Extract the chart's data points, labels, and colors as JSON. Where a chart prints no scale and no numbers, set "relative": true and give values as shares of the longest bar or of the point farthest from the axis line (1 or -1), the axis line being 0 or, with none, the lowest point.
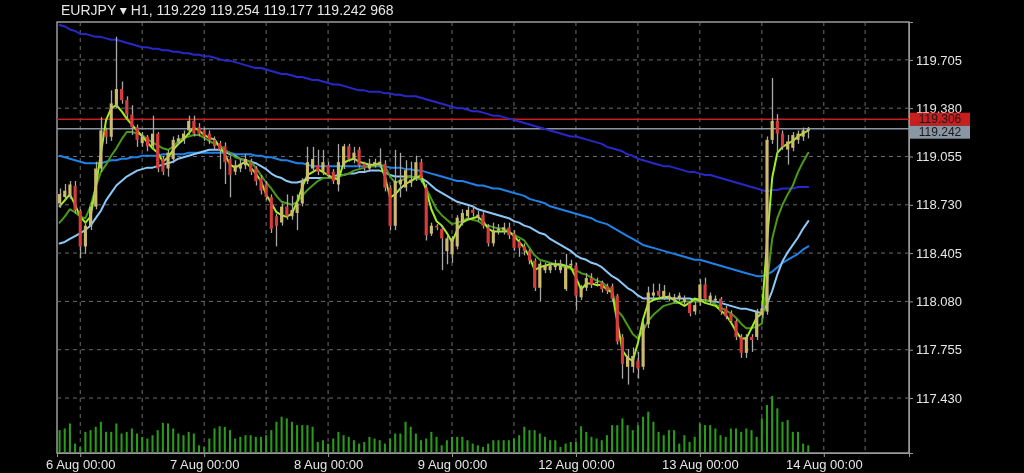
{
  "chart_data": [
    {
      "type": "candlestick",
      "title": "EURJPY ▾ H1, 119.229 119.254 119.177 119.242 968",
      "categories": [
        null,
        null,
        null,
        null,
        "6 Aug 00:00",
        null,
        null,
        null,
        null,
        null,
        null,
        null,
        null,
        null,
        null,
        null,
        null,
        null,
        null,
        null,
        null,
        null,
        null,
        null,
        null,
        null,
        null,
        null,
        "7 Aug 00:00",
        null,
        null,
        null,
        null,
        null,
        null,
        null,
        null,
        null,
        null,
        null,
        null,
        null,
        null,
        null,
        null,
        null,
        null,
        null,
        null,
        null,
        null,
        null,
        "8 Aug 00:00",
        null,
        null,
        null,
        null,
        null,
        null,
        null,
        null,
        null,
        null,
        null,
        null,
        null,
        null,
        null,
        null,
        null,
        null,
        null,
        null,
        null,
        null,
        null,
        "9 Aug 00:00",
        null,
        null,
        null,
        null,
        null,
        null,
        null,
        null,
        null,
        null,
        null,
        null,
        null,
        null,
        null,
        null,
        null,
        null,
        null,
        null,
        null,
        null,
        null,
        "12 Aug 00:00",
        null,
        null,
        null,
        null,
        null,
        null,
        null,
        null,
        null,
        null,
        null,
        null,
        null,
        null,
        null,
        null,
        null,
        null,
        null,
        null,
        null,
        null,
        null,
        "13 Aug 00:00",
        null,
        null,
        null,
        null,
        null,
        null,
        null,
        null,
        null,
        null,
        null,
        null,
        null,
        null,
        null,
        null,
        null,
        null,
        null,
        null,
        null,
        null,
        null,
        "14 Aug 00:00",
        null,
        null,
        null,
        null,
        null,
        null,
        null,
        null,
        null,
        null,
        null,
        null,
        null,
        null,
        null,
        null
      ],
      "ohlc": [
        [
          118.739,
          118.84,
          118.71,
          118.803
        ],
        [
          118.782,
          118.87,
          118.76,
          118.825
        ],
        [
          118.792,
          118.89,
          118.77,
          118.867
        ],
        [
          118.857,
          118.89,
          118.67,
          118.696
        ],
        [
          118.69,
          118.7,
          118.37,
          118.45
        ],
        [
          118.45,
          118.62,
          118.4,
          118.589
        ],
        [
          118.589,
          118.75,
          118.56,
          118.718
        ],
        [
          118.718,
          119.02,
          118.7,
          118.974
        ],
        [
          118.974,
          119.32,
          118.95,
          119.231
        ],
        [
          119.231,
          119.25,
          119.14,
          119.188
        ],
        [
          119.188,
          119.5,
          119.16,
          119.412
        ],
        [
          119.402,
          119.861,
          119.38,
          119.509
        ],
        [
          119.509,
          119.56,
          119.41,
          119.434
        ],
        [
          119.434,
          119.46,
          119.3,
          119.338
        ],
        [
          119.338,
          119.4,
          119.2,
          119.252
        ],
        [
          119.252,
          119.27,
          119.12,
          119.167
        ],
        [
          119.145,
          119.22,
          119.12,
          119.188
        ],
        [
          119.188,
          119.2,
          119.09,
          119.124
        ],
        [
          119.124,
          119.33,
          119.1,
          119.209
        ],
        [
          119.209,
          119.22,
          118.95,
          118.974
        ],
        [
          119.038,
          119.06,
          118.93,
          118.953
        ],
        [
          118.974,
          119.1,
          118.92,
          119.081
        ],
        [
          119.038,
          119.19,
          119.01,
          119.167
        ],
        [
          119.156,
          119.2,
          119.13,
          119.177
        ],
        [
          119.167,
          119.23,
          119.14,
          119.209
        ],
        [
          119.231,
          119.33,
          119.2,
          119.295
        ],
        [
          119.295,
          119.33,
          119.19,
          119.209
        ],
        [
          119.252,
          119.28,
          119.19,
          119.209
        ],
        [
          119.231,
          119.25,
          119.16,
          119.188
        ],
        [
          119.209,
          119.23,
          119.14,
          119.167
        ],
        [
          119.167,
          119.19,
          119.1,
          119.124
        ],
        [
          119.145,
          119.16,
          118.97,
          119.102
        ],
        [
          119.124,
          119.15,
          118.87,
          119.017
        ],
        [
          119.038,
          119.06,
          118.78,
          118.931
        ],
        [
          118.953,
          119.03,
          118.93,
          118.996
        ],
        [
          118.974,
          119.04,
          118.95,
          119.006
        ],
        [
          118.996,
          119.07,
          118.97,
          119.038
        ],
        [
          119.017,
          119.04,
          118.93,
          118.953
        ],
        [
          118.974,
          118.99,
          118.86,
          118.889
        ],
        [
          118.91,
          118.93,
          118.8,
          118.825
        ],
        [
          118.867,
          118.89,
          118.76,
          118.782
        ],
        [
          118.782,
          118.8,
          118.54,
          118.568
        ],
        [
          118.653,
          118.67,
          118.45,
          118.589
        ],
        [
          118.611,
          118.74,
          118.59,
          118.718
        ],
        [
          118.718,
          118.8,
          118.63,
          118.653
        ],
        [
          118.653,
          118.79,
          118.63,
          118.696
        ],
        [
          118.675,
          118.8,
          118.56,
          118.739
        ],
        [
          118.739,
          118.91,
          118.72,
          118.889
        ],
        [
          118.889,
          119.12,
          118.87,
          119.017
        ],
        [
          118.974,
          119.12,
          118.95,
          119.038
        ],
        [
          118.996,
          119.1,
          118.93,
          118.953
        ],
        [
          118.953,
          119.1,
          118.93,
          119.017
        ],
        [
          118.996,
          119.02,
          118.91,
          118.931
        ],
        [
          118.953,
          118.97,
          118.87,
          118.889
        ],
        [
          118.867,
          119.14,
          118.82,
          119.017
        ],
        [
          118.996,
          119.14,
          118.97,
          119.124
        ],
        [
          119.124,
          119.14,
          119.02,
          119.038
        ],
        [
          119.038,
          119.12,
          119.01,
          119.081
        ],
        [
          119.102,
          119.12,
          118.98,
          118.996
        ],
        [
          119.006,
          119.02,
          118.95,
          118.974
        ],
        [
          118.974,
          119.04,
          118.95,
          119.006
        ],
        [
          118.996,
          119.04,
          118.98,
          119.017
        ],
        [
          118.996,
          119.11,
          118.98,
          119.02
        ],
        [
          119.006,
          119.03,
          118.82,
          118.846
        ],
        [
          118.846,
          118.86,
          118.56,
          118.589
        ],
        [
          118.589,
          119.1,
          118.56,
          118.889
        ],
        [
          118.867,
          119.08,
          118.78,
          118.899
        ],
        [
          118.846,
          119.03,
          118.82,
          118.963
        ],
        [
          118.878,
          119.02,
          118.85,
          118.899
        ],
        [
          118.91,
          119.06,
          118.89,
          119.017
        ],
        [
          119.017,
          119.04,
          118.88,
          118.91
        ],
        [
          118.846,
          118.87,
          118.49,
          118.525
        ],
        [
          118.536,
          118.61,
          118.52,
          118.589
        ],
        [
          118.589,
          118.6,
          118.56,
          118.578
        ],
        [
          118.568,
          118.58,
          118.29,
          118.504
        ],
        [
          118.418,
          118.52,
          118.33,
          118.504
        ],
        [
          118.397,
          118.52,
          118.34,
          118.504
        ],
        [
          118.45,
          118.66,
          118.43,
          118.643
        ],
        [
          118.611,
          118.7,
          118.59,
          118.675
        ],
        [
          118.653,
          118.72,
          118.63,
          118.696
        ],
        [
          118.696,
          118.72,
          118.65,
          118.675
        ],
        [
          118.643,
          118.69,
          118.62,
          118.664
        ],
        [
          118.664,
          118.68,
          118.57,
          118.589
        ],
        [
          118.578,
          118.6,
          118.45,
          118.471
        ],
        [
          118.471,
          118.61,
          118.45,
          118.557
        ],
        [
          118.557,
          118.6,
          118.53,
          118.568
        ],
        [
          118.557,
          118.61,
          118.53,
          118.578
        ],
        [
          118.578,
          118.61,
          118.5,
          118.525
        ],
        [
          118.536,
          118.56,
          118.42,
          118.44
        ],
        [
          118.482,
          118.5,
          118.38,
          118.44
        ],
        [
          118.45,
          118.47,
          118.39,
          118.418
        ],
        [
          118.418,
          118.43,
          118.33,
          118.354
        ],
        [
          118.354,
          118.37,
          118.15,
          118.172
        ],
        [
          118.172,
          118.35,
          118.08,
          118.333
        ],
        [
          118.29,
          118.34,
          118.27,
          118.322
        ],
        [
          118.29,
          118.34,
          118.27,
          118.322
        ],
        [
          118.311,
          118.36,
          118.29,
          118.333
        ],
        [
          118.29,
          118.36,
          118.27,
          118.322
        ],
        [
          118.162,
          118.4,
          118.15,
          118.311
        ],
        [
          118.322,
          118.36,
          118.3,
          118.333
        ],
        [
          118.322,
          118.34,
          118.02,
          118.119
        ],
        [
          118.108,
          118.19,
          118.09,
          118.172
        ],
        [
          118.172,
          118.27,
          118.15,
          118.237
        ],
        [
          118.237,
          118.27,
          118.17,
          118.194
        ],
        [
          118.205,
          118.24,
          118.18,
          118.21
        ],
        [
          118.205,
          118.22,
          118.14,
          118.162
        ],
        [
          118.183,
          118.2,
          118.13,
          118.151
        ],
        [
          118.183,
          118.2,
          118.08,
          118.098
        ],
        [
          118.119,
          118.13,
          117.79,
          117.809
        ],
        [
          117.841,
          117.86,
          117.56,
          117.66
        ],
        [
          117.64,
          117.76,
          117.52,
          117.713
        ],
        [
          117.64,
          117.77,
          117.6,
          117.713
        ],
        [
          117.681,
          117.74,
          117.56,
          117.629
        ],
        [
          117.64,
          117.95,
          117.62,
          117.927
        ],
        [
          117.927,
          118.18,
          117.9,
          118.14
        ],
        [
          118.119,
          118.2,
          118.1,
          118.14
        ],
        [
          118.151,
          118.2,
          118.1,
          118.119
        ],
        [
          118.108,
          118.19,
          118.09,
          118.151
        ],
        [
          118.098,
          118.14,
          118.08,
          118.119
        ],
        [
          118.087,
          118.13,
          118.07,
          118.108
        ],
        [
          118.098,
          118.14,
          118.08,
          118.119
        ],
        [
          118.076,
          118.12,
          118.06,
          118.098
        ],
        [
          118.066,
          118.08,
          117.98,
          118.001
        ],
        [
          118.012,
          118.08,
          117.99,
          118.055
        ],
        [
          118.076,
          118.23,
          118.05,
          118.194
        ],
        [
          118.194,
          118.24,
          118.08,
          118.098
        ],
        [
          118.076,
          118.14,
          118.06,
          118.119
        ],
        [
          118.087,
          118.12,
          118.07,
          118.098
        ],
        [
          118.098,
          118.11,
          117.99,
          118.012
        ],
        [
          118.033,
          118.05,
          117.96,
          117.98
        ],
        [
          118.001,
          118.02,
          117.93,
          117.948
        ],
        [
          117.948,
          117.96,
          117.82,
          117.841
        ],
        [
          117.841,
          117.86,
          117.7,
          117.734
        ],
        [
          117.734,
          117.86,
          117.7,
          117.841
        ],
        [
          117.841,
          117.86,
          117.74,
          117.82
        ],
        [
          117.841,
          118.03,
          117.82,
          118.012
        ],
        [
          117.991,
          118.06,
          117.97,
          118.033
        ],
        [
          118.012,
          119.19,
          117.99,
          119.167
        ],
        [
          119.167,
          119.583,
          119.14,
          119.295
        ],
        [
          119.295,
          119.34,
          119.06,
          119.209
        ],
        [
          119.209,
          119.23,
          119.1,
          119.124
        ],
        [
          119.102,
          119.2,
          119.0,
          119.156
        ],
        [
          119.113,
          119.22,
          119.09,
          119.199
        ],
        [
          119.167,
          119.23,
          119.14,
          119.209
        ],
        [
          119.188,
          119.25,
          119.16,
          119.231
        ],
        [
          119.229,
          119.254,
          119.177,
          119.242
        ],
        null,
        null,
        null,
        null,
        null,
        null,
        null,
        null,
        null,
        null,
        null,
        null,
        null,
        null,
        null,
        null,
        null,
        null,
        null
      ],
      "series": [
        {
          "type": "line",
          "color": "#2828c8",
          "values": [
            119.94,
            119.93,
            119.91,
            119.9,
            119.88,
            119.88,
            119.87,
            119.86,
            119.86,
            119.85,
            119.84,
            119.84,
            119.83,
            119.82,
            119.81,
            119.8,
            119.79,
            119.79,
            119.78,
            119.78,
            119.77,
            119.77,
            119.76,
            119.76,
            119.75,
            119.75,
            119.74,
            119.74,
            119.73,
            119.73,
            119.72,
            119.71,
            119.7,
            119.7,
            119.69,
            119.68,
            119.67,
            119.66,
            119.65,
            119.65,
            119.64,
            119.63,
            119.62,
            119.61,
            119.61,
            119.6,
            119.59,
            119.59,
            119.58,
            119.57,
            119.57,
            119.56,
            119.55,
            119.54,
            119.54,
            119.53,
            119.52,
            119.51,
            119.5,
            119.5,
            119.49,
            119.49,
            119.49,
            119.48,
            119.48,
            119.47,
            119.47,
            119.46,
            119.46,
            119.46,
            119.45,
            119.44,
            119.43,
            119.42,
            119.41,
            119.4,
            119.39,
            119.38,
            119.38,
            119.37,
            119.36,
            119.36,
            119.35,
            119.34,
            119.33,
            119.33,
            119.32,
            119.31,
            119.3,
            119.29,
            119.28,
            119.27,
            119.26,
            119.25,
            119.24,
            119.23,
            119.22,
            119.21,
            119.2,
            119.19,
            119.19,
            119.18,
            119.17,
            119.16,
            119.15,
            119.14,
            119.12,
            119.11,
            119.1,
            119.09,
            119.07,
            119.06,
            119.04,
            119.03,
            119.02,
            119.01,
            119.0,
            118.99,
            118.99,
            118.98,
            118.97,
            118.96,
            118.95,
            118.95,
            118.94,
            118.93,
            118.93,
            118.92,
            118.91,
            118.9,
            118.89,
            118.88,
            118.87,
            118.86,
            118.85,
            118.84,
            118.83,
            118.82,
            118.83,
            118.83,
            118.84,
            118.84,
            118.84,
            118.85,
            118.85,
            118.85,
            null,
            null,
            null,
            null,
            null,
            null,
            null,
            null,
            null,
            null,
            null,
            null,
            null,
            null,
            null,
            null,
            null,
            null,
            null
          ]
        },
        {
          "type": "line",
          "color": "#1e82e6",
          "values": [
            119.06,
            119.05,
            119.04,
            119.03,
            119.02,
            119.01,
            119.01,
            119.01,
            119.01,
            119.02,
            119.03,
            119.03,
            119.04,
            119.04,
            119.05,
            119.05,
            119.06,
            119.06,
            119.06,
            119.06,
            119.07,
            119.07,
            119.07,
            119.07,
            119.07,
            119.08,
            119.08,
            119.08,
            119.08,
            119.08,
            119.08,
            119.08,
            119.08,
            119.08,
            119.07,
            119.07,
            119.07,
            119.07,
            119.06,
            119.06,
            119.05,
            119.05,
            119.04,
            119.03,
            119.03,
            119.02,
            119.01,
            119.01,
            119.0,
            118.99,
            118.99,
            118.99,
            118.99,
            118.99,
            118.99,
            118.99,
            118.99,
            118.99,
            118.99,
            118.99,
            118.99,
            118.99,
            118.99,
            118.99,
            118.98,
            118.98,
            118.98,
            118.97,
            118.97,
            118.96,
            118.96,
            118.95,
            118.94,
            118.93,
            118.92,
            118.91,
            118.9,
            118.89,
            118.89,
            118.88,
            118.87,
            118.86,
            118.86,
            118.85,
            118.84,
            118.84,
            118.83,
            118.82,
            118.81,
            118.8,
            118.79,
            118.77,
            118.76,
            118.75,
            118.74,
            118.72,
            118.71,
            118.7,
            118.69,
            118.68,
            118.67,
            118.66,
            118.65,
            118.64,
            118.62,
            118.61,
            118.6,
            118.58,
            118.56,
            118.54,
            118.52,
            118.5,
            118.48,
            118.46,
            118.45,
            118.44,
            118.43,
            118.42,
            118.41,
            118.4,
            118.39,
            118.38,
            118.37,
            118.36,
            118.36,
            118.35,
            118.34,
            118.33,
            118.32,
            118.31,
            118.3,
            118.29,
            118.28,
            118.27,
            118.26,
            118.25,
            118.25,
            118.26,
            118.28,
            118.31,
            118.34,
            118.36,
            118.38,
            118.4,
            118.43,
            118.45,
            null,
            null,
            null,
            null,
            null,
            null,
            null,
            null,
            null,
            null,
            null,
            null,
            null,
            null,
            null,
            null,
            null,
            null,
            null
          ]
        },
        {
          "type": "line",
          "color": "#8cc8f8",
          "values": [
            118.47,
            118.48,
            118.5,
            118.52,
            118.54,
            118.56,
            118.59,
            118.64,
            118.69,
            118.76,
            118.81,
            118.86,
            118.89,
            118.92,
            118.94,
            118.96,
            118.97,
            118.98,
            118.98,
            118.99,
            119.0,
            119.01,
            119.02,
            119.04,
            119.05,
            119.06,
            119.07,
            119.08,
            119.09,
            119.1,
            119.1,
            119.1,
            119.09,
            119.07,
            119.06,
            119.04,
            119.03,
            119.02,
            119.01,
            118.99,
            118.97,
            118.94,
            118.92,
            118.91,
            118.89,
            118.88,
            118.88,
            118.89,
            118.91,
            118.91,
            118.91,
            118.91,
            118.91,
            118.92,
            118.93,
            118.93,
            118.94,
            118.94,
            118.95,
            118.95,
            118.96,
            118.96,
            118.96,
            118.95,
            118.93,
            118.92,
            118.92,
            118.92,
            118.92,
            118.91,
            118.91,
            118.89,
            118.86,
            118.83,
            118.81,
            118.79,
            118.77,
            118.75,
            118.74,
            118.73,
            118.72,
            118.7,
            118.69,
            118.68,
            118.67,
            118.66,
            118.65,
            118.64,
            118.62,
            118.61,
            118.59,
            118.58,
            118.56,
            118.54,
            118.53,
            118.5,
            118.48,
            118.46,
            118.44,
            118.42,
            118.39,
            118.37,
            118.36,
            118.34,
            118.33,
            118.31,
            118.28,
            118.25,
            118.23,
            118.2,
            118.17,
            118.15,
            118.12,
            118.1,
            118.1,
            118.1,
            118.1,
            118.1,
            118.1,
            118.1,
            118.1,
            118.1,
            118.1,
            118.09,
            null,
            118.09,
            118.08,
            118.08,
            118.07,
            118.06,
            118.05,
            118.04,
            118.03,
            118.03,
            118.02,
            118.01,
            118.0,
            118.06,
            118.15,
            118.26,
            118.35,
            118.41,
            118.46,
            118.51,
            118.57,
            118.62,
            null,
            null,
            null,
            null,
            null,
            null,
            null,
            null,
            null,
            null,
            null,
            null,
            null,
            null,
            null,
            null,
            null,
            null,
            null
          ]
        },
        {
          "type": "line",
          "color": "#4a9a1a",
          "values": [
            118.61,
            118.65,
            118.7,
            118.68,
            118.65,
            118.64,
            118.72,
            118.85,
            118.95,
            119.0,
            119.06,
            119.11,
            119.17,
            119.22,
            119.22,
            119.21,
            119.2,
            119.17,
            119.15,
            119.13,
            119.11,
            119.1,
            119.12,
            119.16,
            119.18,
            119.19,
            119.2,
            119.2,
            119.18,
            119.16,
            119.14,
            119.13,
            119.1,
            119.08,
            119.05,
            119.04,
            119.03,
            119.02,
            118.98,
            118.93,
            118.88,
            118.84,
            118.79,
            118.75,
            118.74,
            118.73,
            118.75,
            118.79,
            118.83,
            118.86,
            118.89,
            118.91,
            118.91,
            118.91,
            118.92,
            118.93,
            118.94,
            118.96,
            118.97,
            118.98,
            118.99,
            118.99,
            119.0,
            118.99,
            118.92,
            118.88,
            118.89,
            118.91,
            118.92,
            118.91,
            118.9,
            118.84,
            118.77,
            118.7,
            118.66,
            118.63,
            118.6,
            118.61,
            118.62,
            118.64,
            118.63,
            118.62,
            118.6,
            118.59,
            118.58,
            118.57,
            118.57,
            118.55,
            118.53,
            118.51,
            118.49,
            118.44,
            118.39,
            118.36,
            118.35,
            118.34,
            118.33,
            118.32,
            118.31,
            118.3,
            118.29,
            118.27,
            118.26,
            118.24,
            118.22,
            118.21,
            118.18,
            118.15,
            118.02,
            117.98,
            117.92,
            117.86,
            117.83,
            117.88,
            117.95,
            117.99,
            118.02,
            118.05,
            118.06,
            118.07,
            118.07,
            118.08,
            118.08,
            118.08,
            118.08,
            118.09,
            118.08,
            118.06,
            118.04,
            118.02,
            118.0,
            117.97,
            117.93,
            117.9,
            117.9,
            117.91,
            117.93,
            118.2,
            118.5,
            118.64,
            118.73,
            118.8,
            118.86,
            118.95,
            119.02,
            119.08,
            null,
            null,
            null,
            null,
            null,
            null,
            null,
            null,
            null,
            null,
            null,
            null,
            null,
            null,
            null,
            null,
            null,
            null,
            null
          ]
        },
        {
          "type": "line",
          "color": "#a0f020",
          "values": [
            118.72,
            118.76,
            118.8,
            118.73,
            118.65,
            118.61,
            118.65,
            118.85,
            null,
            119.3,
            119.38,
            119.4,
            119.36,
            119.31,
            119.27,
            119.23,
            119.19,
            119.15,
            119.11,
            119.08,
            119.02,
            119.05,
            119.1,
            119.14,
            119.17,
            119.21,
            119.25,
            119.23,
            119.2,
            119.18,
            119.17,
            119.12,
            119.07,
            119.0,
            118.98,
            119.0,
            119.02,
            118.98,
            118.94,
            118.89,
            118.8,
            118.74,
            118.68,
            118.66,
            118.65,
            118.67,
            118.75,
            118.85,
            118.93,
            118.95,
            118.97,
            118.95,
            118.93,
            118.91,
            118.9,
            119.01,
            119.03,
            119.04,
            119.02,
            119.01,
            119.0,
            119.0,
            119.01,
            118.92,
            118.78,
            118.8,
            118.84,
            118.87,
            118.89,
            118.91,
            118.93,
            118.83,
            118.7,
            118.62,
            118.59,
            118.54,
            118.48,
            118.56,
            118.61,
            118.63,
            118.64,
            118.65,
            118.62,
            118.57,
            118.55,
            118.55,
            118.55,
            118.55,
            118.52,
            118.48,
            118.44,
            118.38,
            118.29,
            118.31,
            118.32,
            118.33,
            118.33,
            118.33,
            118.32,
            118.31,
            118.24,
            118.16,
            118.2,
            118.2,
            118.19,
            118.19,
            118.16,
            118.14,
            null,
            117.75,
            117.7,
            117.68,
            117.8,
            117.96,
            118.07,
            118.09,
            118.1,
            118.11,
            118.11,
            118.09,
            118.07,
            118.05,
            118.07,
            118.1,
            118.09,
            118.07,
            118.06,
            118.05,
            118.02,
            117.99,
            117.94,
            117.88,
            117.83,
            117.83,
            117.9,
            117.97,
            118.0,
            118.48,
            118.91,
            119.08,
            119.12,
            119.14,
            119.16,
            119.19,
            119.21,
            119.23,
            null,
            null,
            null,
            null,
            null,
            null,
            null,
            null,
            null,
            null,
            null,
            null,
            null,
            null,
            null,
            null,
            null,
            null,
            null
          ]
        }
      ],
      "ylim": [
        117.06,
        119.96
      ],
      "yticks": [
        {
          "value": 117.43,
          "label": "117.430"
        },
        117.755,
        {
          "value": 118.08,
          "label": "118.080"
        },
        118.405,
        {
          "value": 118.73,
          "label": "118.730"
        },
        119.055,
        {
          "value": 119.38,
          "label": "119.380"
        },
        119.705
      ],
      "ref_lines": [
        {
          "axis": "y",
          "value": 119.306,
          "label": "119.306",
          "color": "#c81e1e"
        },
        {
          "axis": "y",
          "value": 119.242,
          "label": "119.242",
          "color": "#8a96a4"
        }
      ],
      "grid": true
    },
    {
      "type": "bar",
      "relative": true,
      "color": "#2a9a1a",
      "categories": [
        null,
        null,
        null,
        null,
        null,
        null,
        null,
        null,
        null,
        null,
        null,
        null,
        null,
        null,
        null,
        null,
        null,
        null,
        null,
        null,
        null,
        null,
        null,
        null,
        null,
        null,
        null,
        null,
        null,
        null,
        null,
        null,
        null,
        null,
        null,
        null,
        null,
        null,
        null,
        null,
        null,
        null,
        null,
        null,
        null,
        null,
        null,
        null,
        null,
        null,
        null,
        null,
        null,
        null,
        null,
        null,
        null,
        null,
        null,
        null,
        null,
        null,
        null,
        null,
        null,
        null,
        null,
        null,
        null,
        null,
        null,
        null,
        null,
        null,
        null,
        null,
        null,
        null,
        null,
        null,
        null,
        null,
        null,
        null,
        null,
        null,
        null,
        null,
        null,
        null,
        null,
        null,
        null,
        null,
        null,
        null,
        null,
        null,
        null,
        null,
        null,
        null,
        null,
        null,
        null,
        null,
        null,
        null,
        null,
        null,
        null,
        null,
        null,
        null,
        null,
        null,
        null,
        null,
        null,
        null,
        null,
        null,
        null,
        null,
        null,
        null,
        null,
        null,
        null,
        null,
        null,
        null,
        null,
        null,
        null,
        null,
        null,
        null,
        null,
        null,
        null,
        null,
        null,
        null,
        null,
        null
      ],
      "values": [
        0.39,
        0.42,
        0.51,
        0.15,
        0.09,
        0.36,
        0.39,
        0.45,
        0.54,
        0.36,
        0.36,
        0.51,
        0.33,
        0.36,
        0.42,
        0.33,
        0.27,
        0.24,
        0.3,
        0.39,
        0.52,
        0.51,
        0.42,
        0.33,
        0.3,
        0.36,
        0.33,
        0.12,
        0.09,
        0.24,
        0.42,
        0.46,
        0.45,
        0.39,
        0.24,
        0.27,
        0.3,
        0.3,
        0.27,
        0.27,
        0.3,
        0.39,
        0.54,
        0.63,
        0.6,
        0.54,
        0.48,
        0.48,
        0.48,
        0.45,
        0.18,
        0.21,
        0.15,
        0.24,
        0.36,
        0.3,
        0.27,
        0.21,
        0.15,
        0.18,
        0.27,
        0.24,
        0.21,
        0.15,
        0.24,
        0.33,
        0.33,
        0.54,
        0.45,
        0.33,
        0.21,
        0.24,
        0.36,
        0.27,
        0.12,
        0.21,
        0.27,
        0.27,
        0.27,
        0.21,
        0.15,
        0.12,
        0.09,
        0.15,
        0.21,
        0.21,
        0.21,
        0.21,
        0.24,
        0.3,
        0.45,
        0.39,
        0.39,
        0.33,
        0.27,
        0.21,
        0.21,
        0.09,
        0.15,
        0.18,
        0.18,
        0.46,
        0.36,
        0.27,
        0.24,
        0.21,
        0.3,
        0.48,
        0.48,
        0.6,
        0.48,
        0.39,
        0.48,
        0.63,
        0.72,
        0.54,
        0.36,
        0.3,
        0.39,
        0.39,
        0.15,
        0.3,
        0.18,
        0.27,
        0.51,
        0.48,
        0.48,
        0.42,
        0.3,
        0.27,
        0.42,
        0.42,
        0.36,
        0.42,
        0.39,
        0.27,
        0.6,
        0.84,
        1,
        0.78,
        0.54,
        0.57,
        0.36,
        0.36,
        0.15,
        0.12
      ]
    }
  ]
}
